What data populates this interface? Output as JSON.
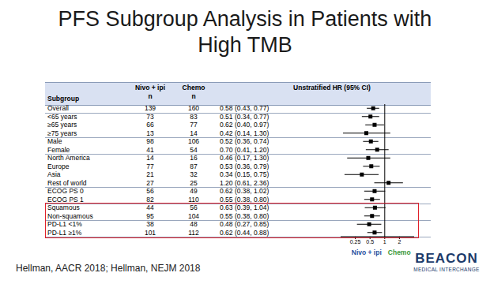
{
  "chart_data": {
    "type": "forest",
    "title": "PFS Subgroup Analysis in Patients with High TMB",
    "columns": [
      {
        "label": "Subgroup"
      },
      {
        "label": "Nivo + ipi",
        "sub": "n"
      },
      {
        "label": "Chemo",
        "sub": "n"
      },
      {
        "label": "Unstratified HR (95% CI)"
      }
    ],
    "groups": [
      {
        "rows": [
          {
            "subgroup": "Overall",
            "nivo_ipi_n": 139,
            "chemo_n": 160,
            "hr": 0.58,
            "ci": [
              0.43,
              0.77
            ],
            "label": "0.58 (0.43, 0.77)"
          }
        ]
      },
      {
        "rows": [
          {
            "subgroup": "<65 years",
            "nivo_ipi_n": 73,
            "chemo_n": 83,
            "hr": 0.51,
            "ci": [
              0.34,
              0.77
            ],
            "label": "0.51 (0.34, 0.77)"
          },
          {
            "subgroup": "≥65 years",
            "nivo_ipi_n": 66,
            "chemo_n": 77,
            "hr": 0.62,
            "ci": [
              0.4,
              0.97
            ],
            "label": "0.62 (0.40, 0.97)"
          },
          {
            "subgroup": "≥75 years",
            "nivo_ipi_n": 13,
            "chemo_n": 14,
            "hr": 0.42,
            "ci": [
              0.14,
              1.3
            ],
            "label": "0.42 (0.14, 1.30)"
          }
        ]
      },
      {
        "rows": [
          {
            "subgroup": "Male",
            "nivo_ipi_n": 98,
            "chemo_n": 106,
            "hr": 0.52,
            "ci": [
              0.36,
              0.74
            ],
            "label": "0.52 (0.36, 0.74)"
          },
          {
            "subgroup": "Female",
            "nivo_ipi_n": 41,
            "chemo_n": 54,
            "hr": 0.7,
            "ci": [
              0.41,
              1.2
            ],
            "label": "0.70 (0.41, 1.20)"
          }
        ]
      },
      {
        "rows": [
          {
            "subgroup": "North America",
            "nivo_ipi_n": 14,
            "chemo_n": 16,
            "hr": 0.46,
            "ci": [
              0.17,
              1.3
            ],
            "label": "0.46 (0.17, 1.30)"
          },
          {
            "subgroup": "Europe",
            "nivo_ipi_n": 77,
            "chemo_n": 87,
            "hr": 0.53,
            "ci": [
              0.36,
              0.79
            ],
            "label": "0.53 (0.36, 0.79)"
          },
          {
            "subgroup": "Asia",
            "nivo_ipi_n": 21,
            "chemo_n": 32,
            "hr": 0.34,
            "ci": [
              0.15,
              0.75
            ],
            "label": "0.34 (0.15, 0.75)"
          },
          {
            "subgroup": "Rest of world",
            "nivo_ipi_n": 27,
            "chemo_n": 25,
            "hr": 1.2,
            "ci": [
              0.61,
              2.36
            ],
            "label": "1.20 (0.61, 2.36)"
          }
        ]
      },
      {
        "rows": [
          {
            "subgroup": "ECOG PS 0",
            "nivo_ipi_n": 56,
            "chemo_n": 49,
            "hr": 0.62,
            "ci": [
              0.38,
              1.02
            ],
            "label": "0.62 (0.38, 1.02)"
          },
          {
            "subgroup": "ECOG PS 1",
            "nivo_ipi_n": 82,
            "chemo_n": 110,
            "hr": 0.55,
            "ci": [
              0.38,
              0.8
            ],
            "label": "0.55 (0.38, 0.80)"
          }
        ]
      },
      {
        "color": "#e0202a",
        "rows": [
          {
            "subgroup": "Squamous",
            "nivo_ipi_n": 44,
            "chemo_n": 56,
            "hr": 0.63,
            "ci": [
              0.39,
              1.04
            ],
            "label": "0.63 (0.39, 1.04)"
          },
          {
            "subgroup": "Non-squamous",
            "nivo_ipi_n": 95,
            "chemo_n": 104,
            "hr": 0.55,
            "ci": [
              0.38,
              0.8
            ],
            "label": "0.55 (0.38, 0.80)"
          }
        ]
      },
      {
        "color": "#e0202a",
        "rows": [
          {
            "subgroup": "PD-L1 <1%",
            "nivo_ipi_n": 38,
            "chemo_n": 48,
            "hr": 0.48,
            "ci": [
              0.27,
              0.85
            ],
            "label": "0.48 (0.27, 0.85)"
          },
          {
            "subgroup": "PD-L1 ≥1%",
            "nivo_ipi_n": 101,
            "chemo_n": 112,
            "hr": 0.62,
            "ci": [
              0.44,
              0.88
            ],
            "label": "0.62 (0.44, 0.88)"
          }
        ]
      }
    ],
    "log": "x",
    "xlim": [
      0.125,
      4
    ],
    "xticks": [
      0.25,
      0.5,
      1,
      2
    ],
    "reference_line": 1,
    "marker": "square",
    "color": "#000000",
    "x_labels": [
      {
        "text": "Nivo + ipi",
        "color": "#1f4fa0"
      },
      {
        "text": "Chemo",
        "color": "#3c9a3c"
      }
    ],
    "source": "Hellman, AACR 2018; Hellman, NEJM 2018",
    "logo": {
      "title": "BEACON",
      "subtitle": "MEDICAL INTERCHANGE"
    }
  }
}
